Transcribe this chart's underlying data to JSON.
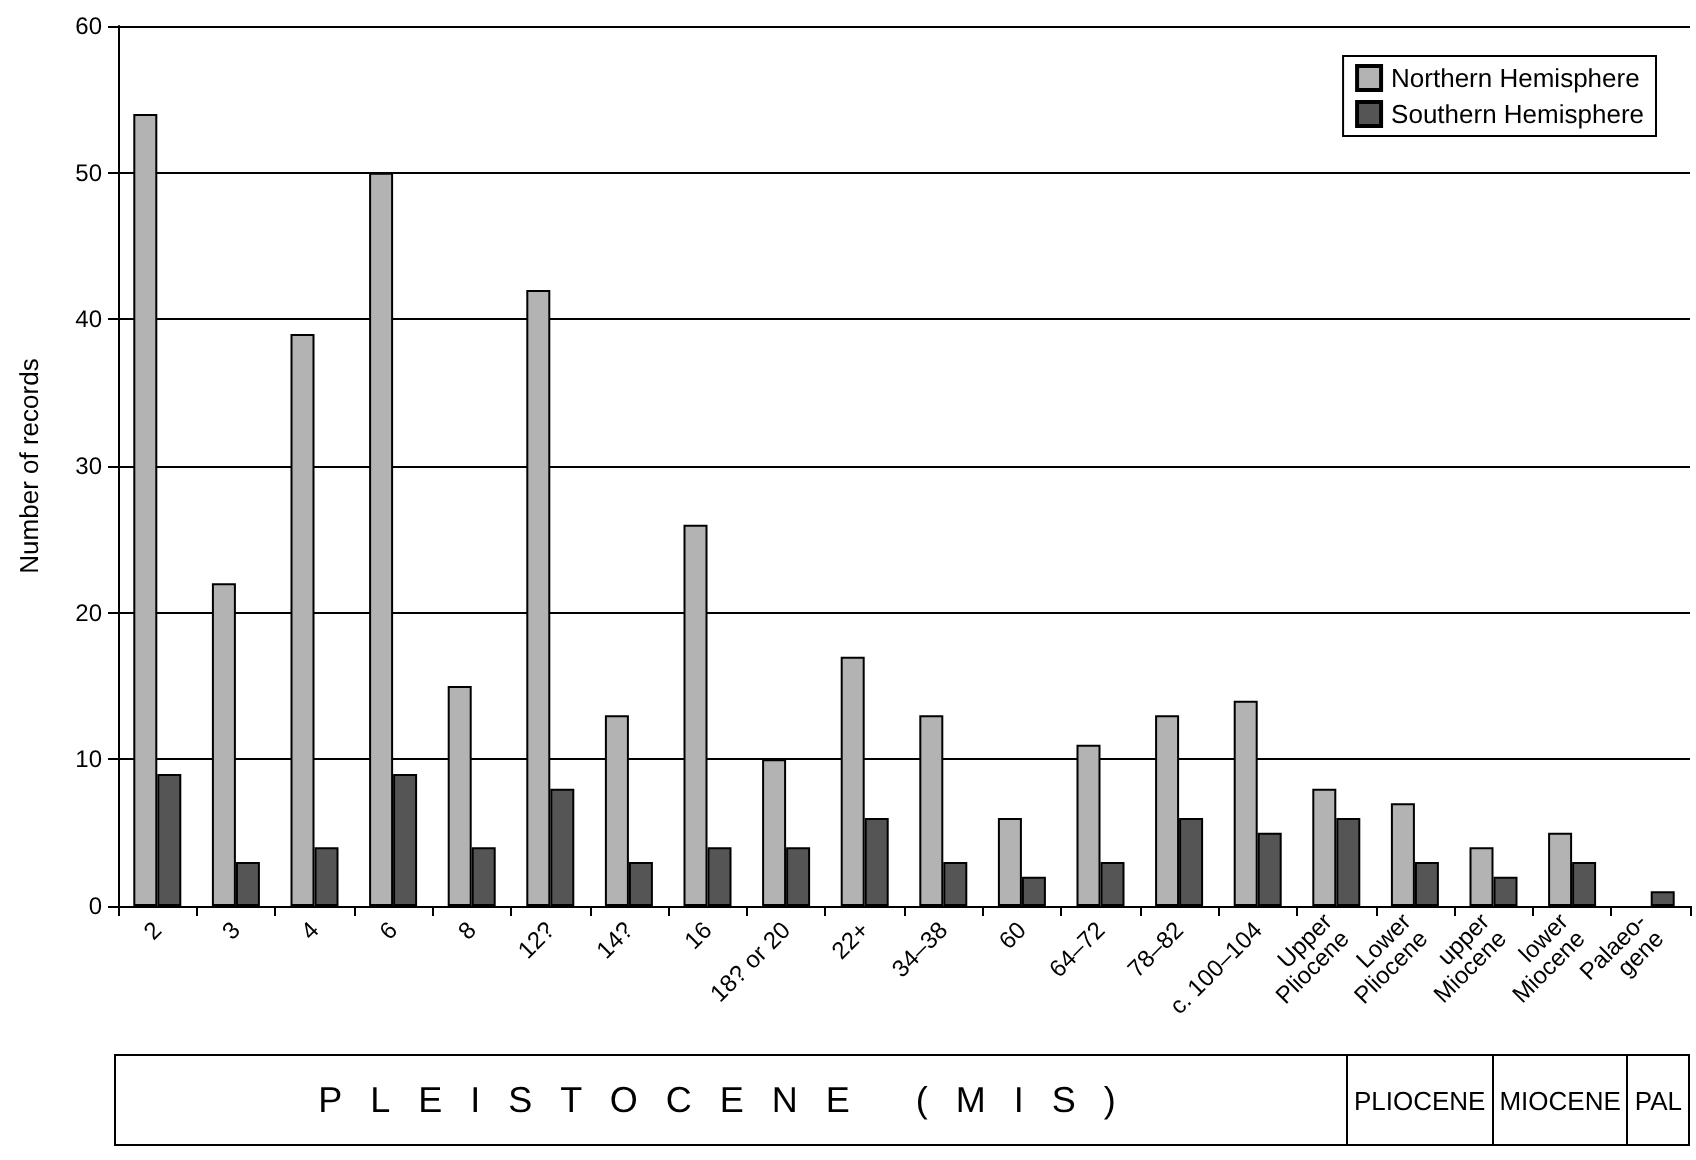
{
  "chart_data": {
    "type": "bar",
    "ylabel": "Number of records",
    "categories": [
      "2",
      "3",
      "4",
      "6",
      "8",
      "12?",
      "14?",
      "16",
      "18? or 20",
      "22+",
      "34–38",
      "60",
      "64–72",
      "78–82",
      "c. 100–104",
      "Upper\nPliocene",
      "Lower\nPliocene",
      "upper\nMiocene",
      "lower\nMiocene",
      "Palaeo-\ngene"
    ],
    "series": [
      {
        "name": "Northern Hemisphere",
        "color": "#b3b3b3",
        "values": [
          54,
          22,
          39,
          50,
          15,
          42,
          13,
          26,
          10,
          17,
          13,
          6,
          11,
          13,
          14,
          8,
          7,
          4,
          5,
          null
        ]
      },
      {
        "name": "Southern Hemisphere",
        "color": "#555555",
        "values": [
          9,
          3,
          4,
          9,
          4,
          8,
          3,
          4,
          4,
          6,
          3,
          2,
          3,
          6,
          5,
          6,
          3,
          2,
          3,
          1
        ]
      }
    ],
    "ylim": [
      0,
      60
    ],
    "yticks": [
      0,
      10,
      20,
      30,
      40,
      50,
      60
    ],
    "grid": "y",
    "legend": "top right",
    "annotations": [
      "PLEISTOCENE (MIS)",
      "PLIOCENE",
      "MIOCENE",
      "PAL"
    ]
  }
}
